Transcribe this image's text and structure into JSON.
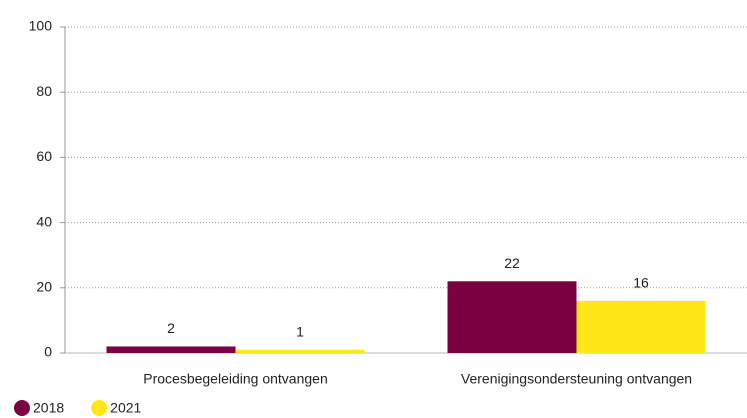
{
  "chart_data": {
    "type": "bar",
    "categories": [
      "Procesbegeleiding ontvangen",
      "Verenigingsondersteuning ontvangen"
    ],
    "series": [
      {
        "name": "2018",
        "color": "#7b0041",
        "values": [
          2,
          22
        ]
      },
      {
        "name": "2021",
        "color": "#ffe617",
        "values": [
          1,
          16
        ]
      }
    ],
    "ylim": [
      0,
      100
    ],
    "yticks": [
      0,
      20,
      40,
      60,
      80,
      100
    ],
    "grid": true,
    "legend": "bottom-left"
  }
}
